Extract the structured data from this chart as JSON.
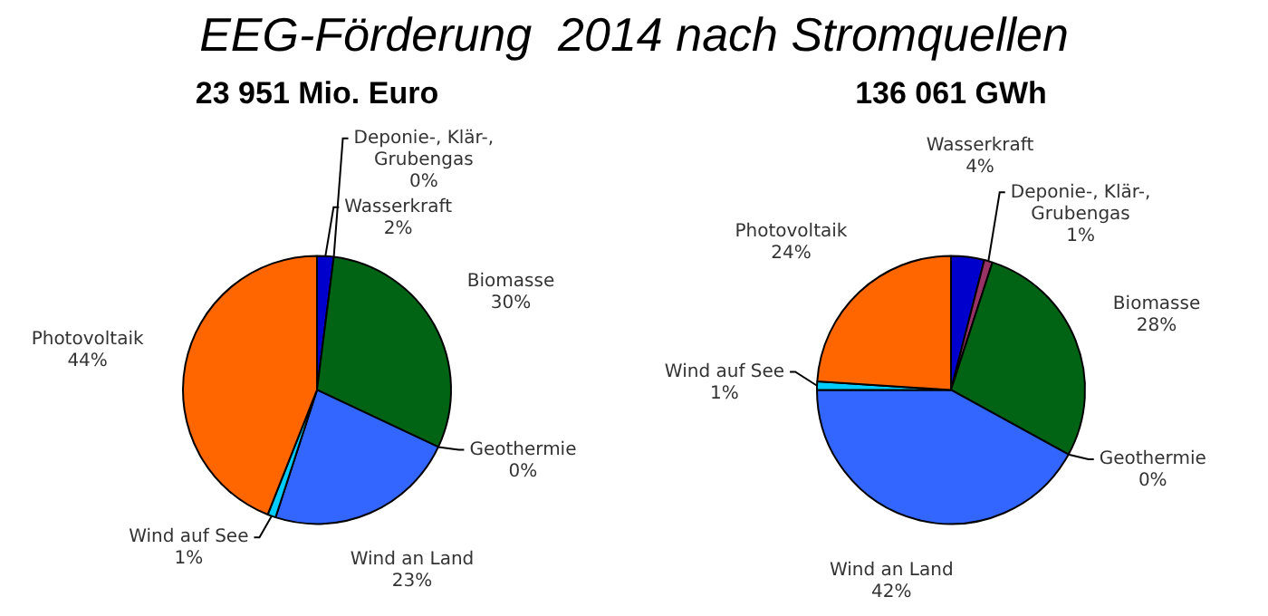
{
  "chart_data": [
    {
      "type": "pie",
      "title": "EEG-Förderung  2014 nach Stromquellen",
      "subtitle": "23 951 Mio. Euro",
      "categories": [
        "Wasserkraft",
        "Deponie-, Klär-, Grubengas",
        "Biomasse",
        "Geothermie",
        "Wind an Land",
        "Wind auf See",
        "Photovoltaik"
      ],
      "values": [
        2,
        0,
        30,
        0,
        23,
        1,
        44
      ],
      "value_labels": [
        "2%",
        "0%",
        "30%",
        "0%",
        "23%",
        "1%",
        "44%"
      ],
      "colors": [
        "#0000cc",
        "#993366",
        "#006414",
        "#cccc00",
        "#3366ff",
        "#00ccff",
        "#ff6600"
      ]
    },
    {
      "type": "pie",
      "subtitle": "136 061 GWh",
      "categories": [
        "Wasserkraft",
        "Deponie-, Klär-, Grubengas",
        "Biomasse",
        "Geothermie",
        "Wind an Land",
        "Wind auf See",
        "Photovoltaik"
      ],
      "values": [
        4,
        1,
        28,
        0,
        42,
        1,
        24
      ],
      "value_labels": [
        "4%",
        "1%",
        "28%",
        "0%",
        "42%",
        "1%",
        "24%"
      ],
      "colors": [
        "#0000cc",
        "#993366",
        "#006414",
        "#cccc00",
        "#3366ff",
        "#00ccff",
        "#ff6600"
      ]
    }
  ]
}
